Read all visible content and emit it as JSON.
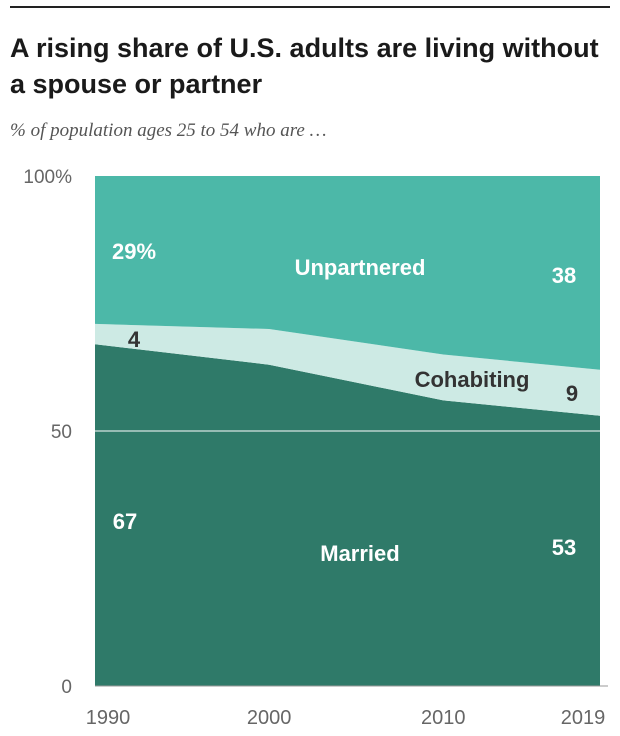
{
  "header": {
    "title": "A rising share of U.S. adults are living without a spouse or partner",
    "subtitle": "% of population ages 25 to 54 who are …"
  },
  "colors": {
    "married": "#2f7a69",
    "cohabiting": "#cdeae4",
    "unpartnered": "#4cb8a8",
    "axis_text": "#666666",
    "gridline": "#ffffff",
    "label_light": "#ffffff",
    "label_dark": "#333333"
  },
  "chart_data": {
    "type": "area",
    "stacked": true,
    "title": "A rising share of U.S. adults are living without a spouse or partner",
    "subtitle": "% of population ages 25 to 54 who are …",
    "x": [
      1990,
      2000,
      2010,
      2019
    ],
    "xticks": [
      "1990",
      "2000",
      "2010",
      "2019"
    ],
    "yticks": [
      "0",
      "50",
      "100%"
    ],
    "ytick_values": [
      0,
      50,
      100
    ],
    "ylim": [
      0,
      100
    ],
    "grid": false,
    "series": [
      {
        "name": "Married",
        "values": [
          67,
          63,
          56,
          53
        ]
      },
      {
        "name": "Cohabiting",
        "values": [
          4,
          7,
          9,
          9
        ]
      },
      {
        "name": "Unpartnered",
        "values": [
          29,
          30,
          35,
          38
        ]
      }
    ],
    "annotations": {
      "unpartnered_1990": "29%",
      "unpartnered_2019": "38",
      "cohabiting_1990": "4",
      "cohabiting_2019": "9",
      "married_1990": "67",
      "married_2019": "53"
    }
  }
}
